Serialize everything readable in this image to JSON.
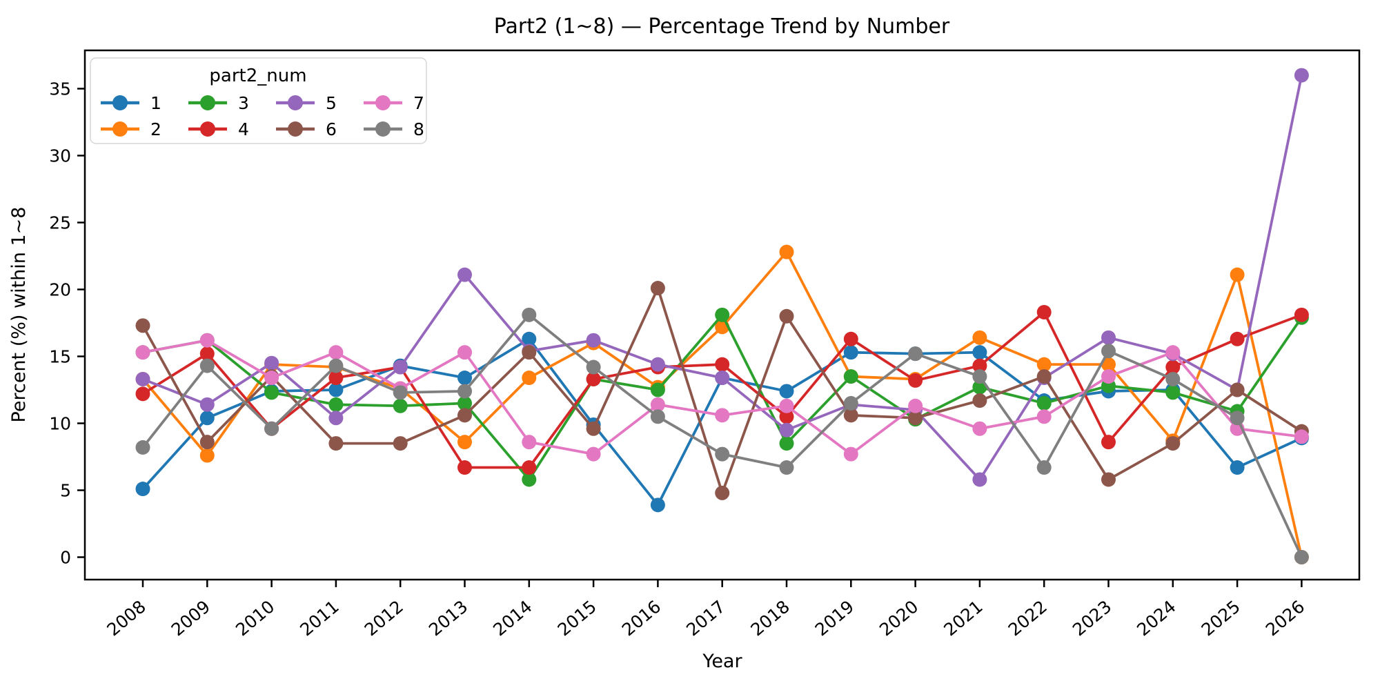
{
  "title": "Part2 (1~8) — Percentage Trend by Number",
  "axes": {
    "xlabel": "Year",
    "ylabel": "Percent (%) within 1~8",
    "yticks": [
      0,
      5,
      10,
      15,
      20,
      25,
      30,
      35
    ],
    "x_tick_rotation_deg": 40
  },
  "legend": {
    "title": "part2_num",
    "position": "upper left",
    "entries": [
      {
        "label": "1",
        "color": "#1f77b4"
      },
      {
        "label": "2",
        "color": "#ff7f0e"
      },
      {
        "label": "3",
        "color": "#2ca02c"
      },
      {
        "label": "4",
        "color": "#d62728"
      },
      {
        "label": "5",
        "color": "#9467bd"
      },
      {
        "label": "6",
        "color": "#8c564b"
      },
      {
        "label": "7",
        "color": "#e377c2"
      },
      {
        "label": "8",
        "color": "#7f7f7f"
      }
    ]
  },
  "chart_data": {
    "type": "line",
    "title": "Part2 (1~8) — Percentage Trend by Number",
    "xlabel": "Year",
    "ylabel": "Percent (%) within 1~8",
    "x": [
      2008,
      2009,
      2010,
      2011,
      2012,
      2013,
      2014,
      2015,
      2016,
      2017,
      2018,
      2019,
      2020,
      2021,
      2022,
      2023,
      2024,
      2025,
      2026
    ],
    "ylim": [
      -1.7,
      37.9
    ],
    "grid": false,
    "legend_position": "upper left",
    "marker": "o",
    "series": [
      {
        "name": "1",
        "color": "#1f77b4",
        "values": [
          5.1,
          10.4,
          12.4,
          12.5,
          14.3,
          13.4,
          16.3,
          9.9,
          3.9,
          13.4,
          12.4,
          15.3,
          15.2,
          15.3,
          11.7,
          12.4,
          12.5,
          6.7,
          8.9
        ]
      },
      {
        "name": "2",
        "color": "#ff7f0e",
        "values": [
          13.3,
          7.6,
          14.4,
          14.2,
          12.6,
          8.6,
          13.4,
          16.0,
          12.7,
          17.2,
          22.8,
          13.5,
          13.3,
          16.4,
          14.4,
          14.4,
          8.7,
          21.1,
          0.0
        ]
      },
      {
        "name": "3",
        "color": "#2ca02c",
        "values": [
          15.3,
          16.2,
          12.3,
          11.4,
          11.3,
          11.5,
          5.8,
          13.3,
          12.5,
          18.1,
          8.5,
          13.5,
          10.3,
          12.7,
          11.5,
          12.8,
          12.3,
          10.9,
          17.9
        ]
      },
      {
        "name": "4",
        "color": "#d62728",
        "values": [
          12.2,
          15.2,
          9.6,
          13.4,
          14.2,
          6.7,
          6.7,
          13.3,
          14.2,
          14.4,
          10.5,
          16.3,
          13.2,
          14.3,
          18.3,
          8.6,
          14.2,
          16.3,
          18.1
        ]
      },
      {
        "name": "5",
        "color": "#9467bd",
        "values": [
          13.3,
          11.4,
          14.5,
          10.4,
          14.2,
          21.1,
          15.4,
          16.2,
          14.4,
          13.4,
          9.5,
          11.4,
          11.0,
          5.8,
          13.4,
          16.4,
          15.2,
          12.5,
          36.0
        ]
      },
      {
        "name": "6",
        "color": "#8c564b",
        "values": [
          17.3,
          8.6,
          13.5,
          8.5,
          8.5,
          10.6,
          15.3,
          9.6,
          20.1,
          4.8,
          18.0,
          10.6,
          10.4,
          11.7,
          13.5,
          5.8,
          8.5,
          12.5,
          9.4
        ]
      },
      {
        "name": "7",
        "color": "#e377c2",
        "values": [
          15.3,
          16.2,
          13.4,
          15.3,
          12.6,
          15.3,
          8.6,
          7.7,
          11.4,
          10.6,
          11.3,
          7.7,
          11.3,
          9.6,
          10.5,
          13.5,
          15.3,
          9.6,
          9.0
        ]
      },
      {
        "name": "8",
        "color": "#7f7f7f",
        "values": [
          8.2,
          14.3,
          9.6,
          14.3,
          12.3,
          12.4,
          18.1,
          14.2,
          10.5,
          7.7,
          6.7,
          11.5,
          15.2,
          13.5,
          6.7,
          15.4,
          13.3,
          10.4,
          0.0
        ]
      }
    ]
  }
}
